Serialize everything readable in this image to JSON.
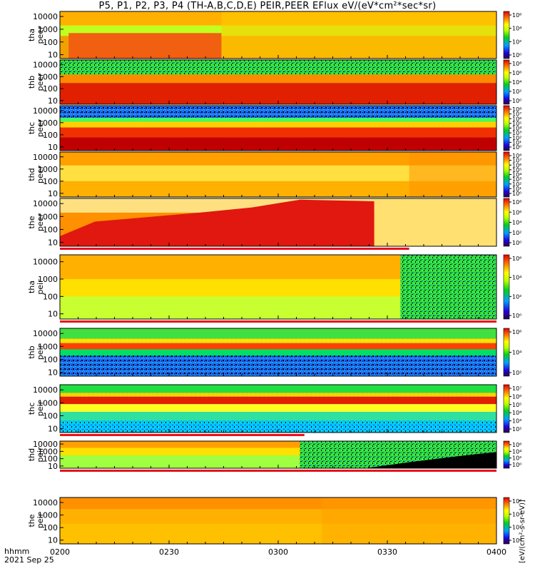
{
  "title": "P5, P1, P2, P3, P4 (TH-A,B,C,D,E) PEIR,PEER EFlux eV/(eV*cm²*sec*sr)",
  "footer": {
    "hhmm": "hhmm",
    "date": "2021 Sep 25"
  },
  "colorbar_units": "[eV/(cm²-s-sr-eV)]",
  "colors": {
    "red": "#e8101a",
    "yellow": "#ffff00",
    "green": "#00d000",
    "blue": "#1020f0"
  },
  "chart_data": {
    "type": "heatmap",
    "time_axis": {
      "range": [
        "0200",
        "0400"
      ],
      "ticks": [
        "0200",
        "0230",
        "0300",
        "0330",
        "0400"
      ]
    },
    "energy_axis": {
      "scale": "log",
      "range_eV": [
        5,
        25000
      ],
      "ticks": [
        "10",
        "100",
        "1000",
        "10000"
      ]
    },
    "panels": [
      {
        "id": "tha-peer",
        "probe": "tha",
        "species": "peer",
        "ylabel": "tha peer",
        "cbar_ticks": [
          "10⁶",
          "10⁴",
          "10²",
          "10⁰"
        ],
        "desc": "electron, bright band above ~30 eV early, fading"
      },
      {
        "id": "thb-peer",
        "probe": "thb",
        "species": "peer",
        "ylabel": "thb peer",
        "cbar_ticks": [
          "10⁸",
          "10⁶",
          "10⁴",
          "10²",
          "10⁰"
        ]
      },
      {
        "id": "thc-peer",
        "probe": "thc",
        "species": "peer",
        "ylabel": "thc peer",
        "cbar_ticks": [
          "10⁸",
          "10⁷",
          "10⁶",
          "10⁵",
          "10⁴",
          "10³",
          "10²",
          "10¹",
          "10⁰"
        ]
      },
      {
        "id": "thd-peer",
        "probe": "thd",
        "species": "peer",
        "ylabel": "thd peer",
        "cbar_ticks": [
          "10⁸",
          "10⁷",
          "10⁶",
          "10⁵",
          "10⁴",
          "10³",
          "10²",
          "10¹",
          "10⁰"
        ]
      },
      {
        "id": "the-peer",
        "probe": "the",
        "species": "peer",
        "ylabel": "the peer",
        "cbar_ticks": [
          "10⁸",
          "10⁶",
          "10⁴",
          "10²",
          "10⁰"
        ]
      },
      {
        "id": "tha-peir",
        "probe": "tha",
        "species": "peir",
        "ylabel": "tha peir",
        "cbar_ticks": [
          "10⁶",
          "10⁴",
          "10²",
          "10⁰"
        ]
      },
      {
        "id": "thb-peir",
        "probe": "thb",
        "species": "peir",
        "ylabel": "thb peir",
        "cbar_ticks": [
          "10⁶",
          "10⁴",
          "10²"
        ]
      },
      {
        "id": "thc-peir",
        "probe": "thc",
        "species": "peir",
        "ylabel": "thc peir",
        "cbar_ticks": [
          "10⁷",
          "10⁶",
          "10⁵",
          "10⁴",
          "10³",
          "10²"
        ]
      },
      {
        "id": "thd-peir",
        "probe": "thd",
        "species": "peir",
        "ylabel": "thd peir",
        "cbar_ticks": [
          "10⁶",
          "10⁴",
          "10²",
          "10⁰"
        ]
      },
      {
        "id": "the-peir",
        "probe": "the",
        "species": "peir",
        "ylabel": "the peir",
        "cbar_ticks": [
          "10⁶",
          "10⁴",
          "10²",
          "10⁰"
        ]
      }
    ]
  }
}
